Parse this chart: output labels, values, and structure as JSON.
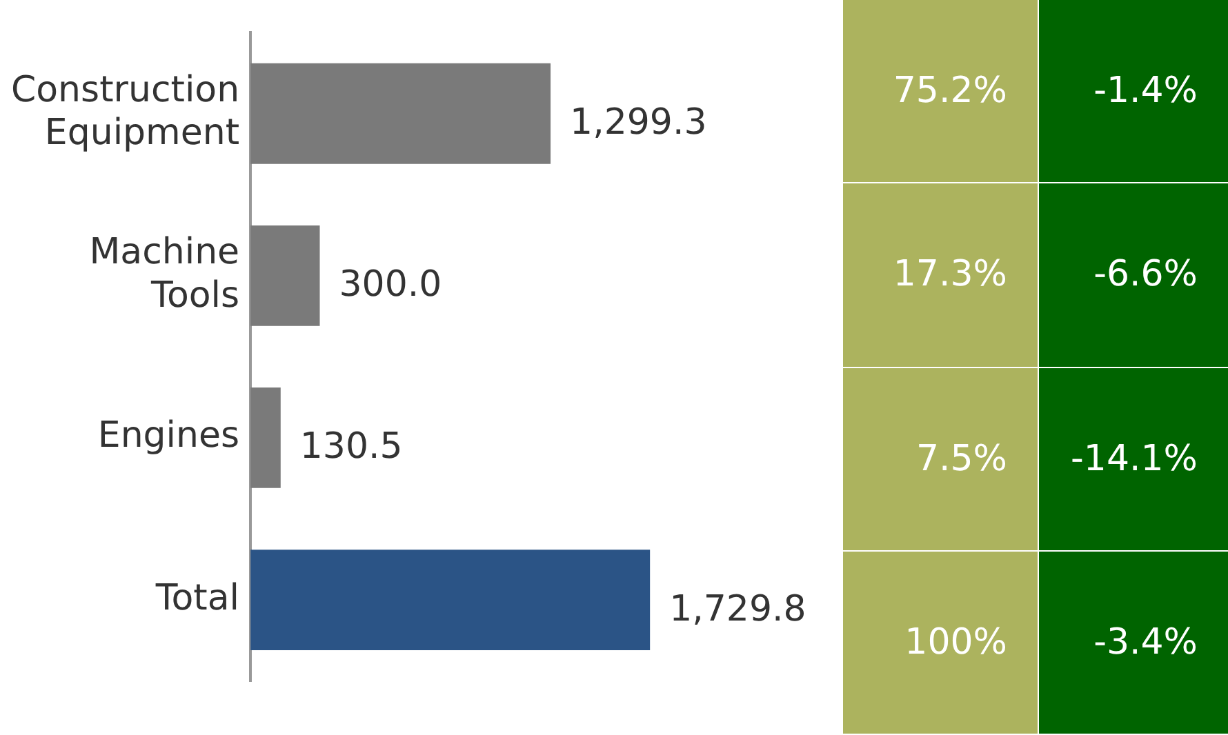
{
  "chart_data": {
    "type": "bar",
    "orientation": "horizontal",
    "categories": [
      "Construction Equipment",
      "Machine Tools",
      "Engines",
      "Total"
    ],
    "values": [
      1299.3,
      300.0,
      130.5,
      1729.8
    ],
    "value_labels": [
      "1,299.3",
      "300.0",
      "130.5",
      "1,729.8"
    ],
    "colors": [
      "#7a7a7a",
      "#7a7a7a",
      "#7a7a7a",
      "#2b5486"
    ],
    "annotations": [
      "75.2%",
      "17.3%",
      "7.5%",
      "100%",
      "-1.4%",
      "-6.6%",
      "-14.1%",
      "-3.4%"
    ],
    "grid": false,
    "legend": false
  }
}
